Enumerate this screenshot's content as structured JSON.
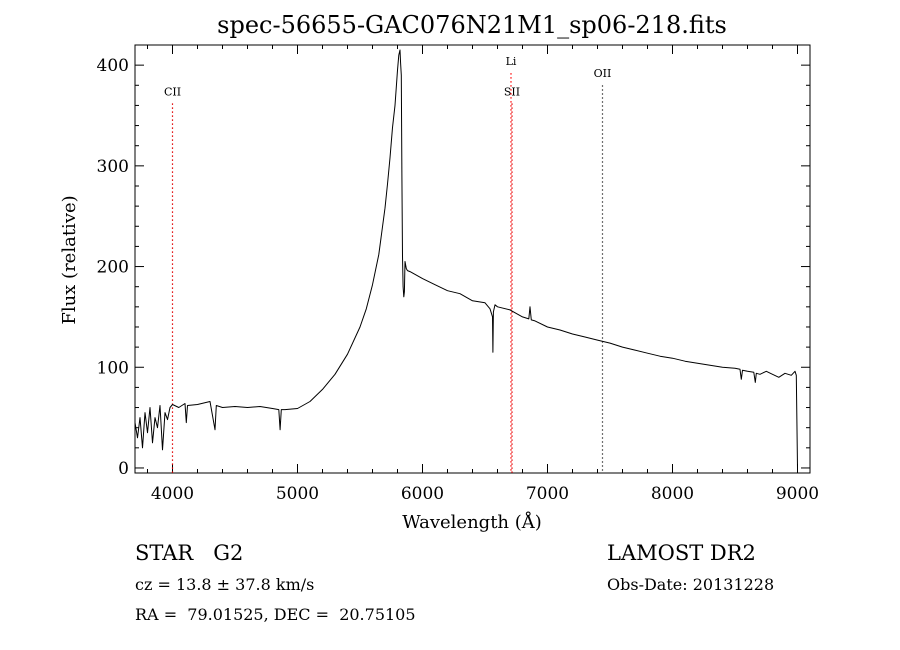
{
  "chart_data": {
    "type": "line",
    "title": "spec-56655-GAC076N21M1_sp06-218.fits",
    "xlabel": "Wavelength (Å)",
    "ylabel": "Flux (relative)",
    "xlim": [
      3700,
      9100
    ],
    "ylim": [
      -5,
      420
    ],
    "xticks": [
      4000,
      5000,
      6000,
      7000,
      8000,
      9000
    ],
    "yticks": [
      0,
      100,
      200,
      300,
      400
    ],
    "grid": false,
    "series": [
      {
        "x": [
          3700,
          3720,
          3740,
          3760,
          3780,
          3800,
          3820,
          3840,
          3860,
          3880,
          3900,
          3920,
          3940,
          3960,
          3980,
          4000,
          4050,
          4100,
          4110,
          4120,
          4200,
          4300,
          4340,
          4350,
          4400,
          4500,
          4600,
          4700,
          4800,
          4850,
          4861,
          4870,
          4900,
          5000,
          5100,
          5200,
          5300,
          5400,
          5500,
          5550,
          5600,
          5650,
          5700,
          5720,
          5740,
          5760,
          5780,
          5800,
          5810,
          5820,
          5825,
          5830,
          5835,
          5840,
          5845,
          5850,
          5855,
          5860,
          5870,
          5880,
          5900,
          6000,
          6100,
          6200,
          6300,
          6400,
          6500,
          6540,
          6560,
          6563,
          6567,
          6580,
          6600,
          6700,
          6800,
          6850,
          6860,
          6870,
          6900,
          7000,
          7100,
          7200,
          7300,
          7400,
          7500,
          7600,
          7700,
          7800,
          7900,
          8000,
          8100,
          8200,
          8300,
          8400,
          8500,
          8540,
          8550,
          8560,
          8600,
          8650,
          8662,
          8670,
          8700,
          8750,
          8800,
          8850,
          8900,
          8950,
          8980,
          8990,
          9000
        ],
        "values": [
          45,
          30,
          50,
          20,
          55,
          35,
          60,
          25,
          50,
          40,
          62,
          18,
          55,
          48,
          60,
          63,
          60,
          64,
          45,
          62,
          63,
          66,
          38,
          62,
          60,
          61,
          60,
          61,
          59,
          58,
          38,
          58,
          58,
          59,
          66,
          78,
          93,
          113,
          140,
          158,
          182,
          212,
          258,
          282,
          308,
          338,
          360,
          395,
          410,
          415,
          402,
          390,
          290,
          210,
          180,
          170,
          175,
          205,
          198,
          196,
          195,
          188,
          182,
          176,
          173,
          166,
          164,
          158,
          150,
          115,
          155,
          162,
          160,
          157,
          150,
          148,
          160,
          147,
          146,
          140,
          137,
          133,
          130,
          127,
          124,
          120,
          117,
          114,
          111,
          109,
          106,
          104,
          102,
          100,
          99,
          98,
          88,
          97,
          96,
          95,
          85,
          94,
          93,
          96,
          93,
          90,
          94,
          92,
          96,
          92,
          0
        ]
      }
    ],
    "lines": [
      {
        "label": "CII",
        "x": 4000,
        "label_y": 370,
        "color": "#e00000"
      },
      {
        "label": "SII",
        "x": 6716,
        "label_y": 370,
        "color": "#e00000"
      },
      {
        "label": "Li",
        "x": 6708,
        "label_y": 400,
        "color": "#ff0000"
      },
      {
        "label": "OII",
        "x": 7440,
        "label_y": 388,
        "color": "#404040"
      }
    ]
  },
  "info": {
    "class_line": "STAR   G2",
    "survey": "LAMOST DR2",
    "cz_line": "cz = 13.8 ± 37.8 km/s",
    "obs_date": "Obs-Date: 20131228",
    "coords": "RA =  79.01525, DEC =  20.75105"
  }
}
